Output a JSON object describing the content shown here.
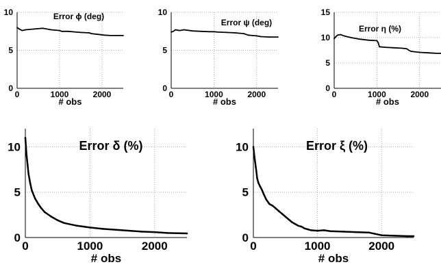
{
  "chart_data": [
    {
      "type": "line",
      "title": "Error ϕ (deg)",
      "xlabel": "# obs",
      "ylabel": "",
      "xlim": [
        0,
        2500
      ],
      "ylim": [
        0,
        10
      ],
      "xticks": [
        0,
        1000,
        2000
      ],
      "yticks": [
        0,
        5,
        10
      ],
      "grid": true,
      "series": [
        {
          "x": [
            0,
            50,
            120,
            200,
            400,
            600,
            800,
            1000,
            1050,
            1200,
            1400,
            1500,
            1700,
            1750,
            1900,
            2050,
            2200,
            2400,
            2500
          ],
          "y": [
            8.0,
            7.8,
            7.6,
            7.7,
            7.8,
            7.9,
            7.7,
            7.6,
            7.5,
            7.5,
            7.4,
            7.35,
            7.3,
            7.2,
            7.1,
            7.0,
            6.95,
            6.95,
            6.95
          ]
        }
      ]
    },
    {
      "type": "line",
      "title": "Error ψ (deg)",
      "xlabel": "# obs",
      "ylabel": "",
      "xlim": [
        0,
        2500
      ],
      "ylim": [
        0,
        10
      ],
      "xticks": [
        0,
        1000,
        2000
      ],
      "yticks": [
        0,
        5,
        10
      ],
      "grid": true,
      "series": [
        {
          "x": [
            0,
            50,
            100,
            150,
            200,
            300,
            500,
            700,
            900,
            1000,
            1100,
            1300,
            1500,
            1700,
            1800,
            1900,
            2000,
            2100,
            2300,
            2500
          ],
          "y": [
            7.4,
            7.5,
            7.7,
            7.65,
            7.6,
            7.7,
            7.55,
            7.5,
            7.45,
            7.45,
            7.4,
            7.35,
            7.3,
            7.2,
            7.0,
            6.95,
            6.9,
            6.8,
            6.75,
            6.75
          ]
        }
      ]
    },
    {
      "type": "line",
      "title": "Error η (%)",
      "xlabel": "# obs",
      "ylabel": "",
      "xlim": [
        0,
        2500
      ],
      "ylim": [
        0,
        15
      ],
      "xticks": [
        0,
        1000,
        2000
      ],
      "yticks": [
        0,
        5,
        10,
        15
      ],
      "grid": true,
      "series": [
        {
          "x": [
            0,
            40,
            80,
            150,
            250,
            400,
            600,
            800,
            1000,
            1030,
            1060,
            1200,
            1400,
            1600,
            1700,
            1750,
            1800,
            2000,
            2200,
            2400,
            2500
          ],
          "y": [
            9.8,
            10.2,
            10.5,
            10.6,
            10.3,
            10.0,
            9.7,
            9.5,
            9.4,
            9.0,
            8.2,
            8.1,
            8.0,
            7.9,
            7.8,
            7.5,
            7.3,
            7.1,
            7.0,
            6.9,
            6.9
          ]
        }
      ]
    },
    {
      "type": "line",
      "title": "Error δ (%)",
      "xlabel": "# obs",
      "ylabel": "",
      "xlim": [
        0,
        2500
      ],
      "ylim": [
        0,
        12
      ],
      "xticks": [
        0,
        1000,
        2000
      ],
      "yticks": [
        0,
        5,
        10
      ],
      "grid": true,
      "series": [
        {
          "x": [
            0,
            10,
            20,
            35,
            50,
            75,
            100,
            150,
            200,
            250,
            300,
            400,
            500,
            600,
            800,
            1000,
            1200,
            1500,
            1800,
            2000,
            2200,
            2500
          ],
          "y": [
            11.0,
            10.0,
            9.0,
            8.0,
            7.0,
            6.0,
            5.2,
            4.3,
            3.7,
            3.2,
            2.8,
            2.3,
            1.9,
            1.6,
            1.3,
            1.1,
            0.95,
            0.8,
            0.65,
            0.6,
            0.5,
            0.45
          ]
        }
      ]
    },
    {
      "type": "line",
      "title": "Error ξ (%)",
      "xlabel": "# obs",
      "ylabel": "",
      "xlim": [
        0,
        2500
      ],
      "ylim": [
        0,
        12
      ],
      "xticks": [
        0,
        1000,
        2000
      ],
      "yticks": [
        0,
        5,
        10
      ],
      "grid": true,
      "series": [
        {
          "x": [
            0,
            15,
            30,
            45,
            60,
            80,
            100,
            130,
            160,
            200,
            250,
            300,
            350,
            400,
            450,
            500,
            550,
            600,
            650,
            700,
            750,
            800,
            850,
            900,
            1000,
            1100,
            1200,
            1400,
            1600,
            1800,
            1900,
            2000,
            2200,
            2400,
            2500
          ],
          "y": [
            10.0,
            9.0,
            8.2,
            7.4,
            6.5,
            6.0,
            5.7,
            5.3,
            4.8,
            4.2,
            3.7,
            3.5,
            3.2,
            2.9,
            2.6,
            2.3,
            2.0,
            1.7,
            1.5,
            1.3,
            1.2,
            1.0,
            0.9,
            0.8,
            0.75,
            0.8,
            0.7,
            0.65,
            0.6,
            0.55,
            0.4,
            0.25,
            0.2,
            0.15,
            0.15
          ]
        }
      ]
    }
  ]
}
